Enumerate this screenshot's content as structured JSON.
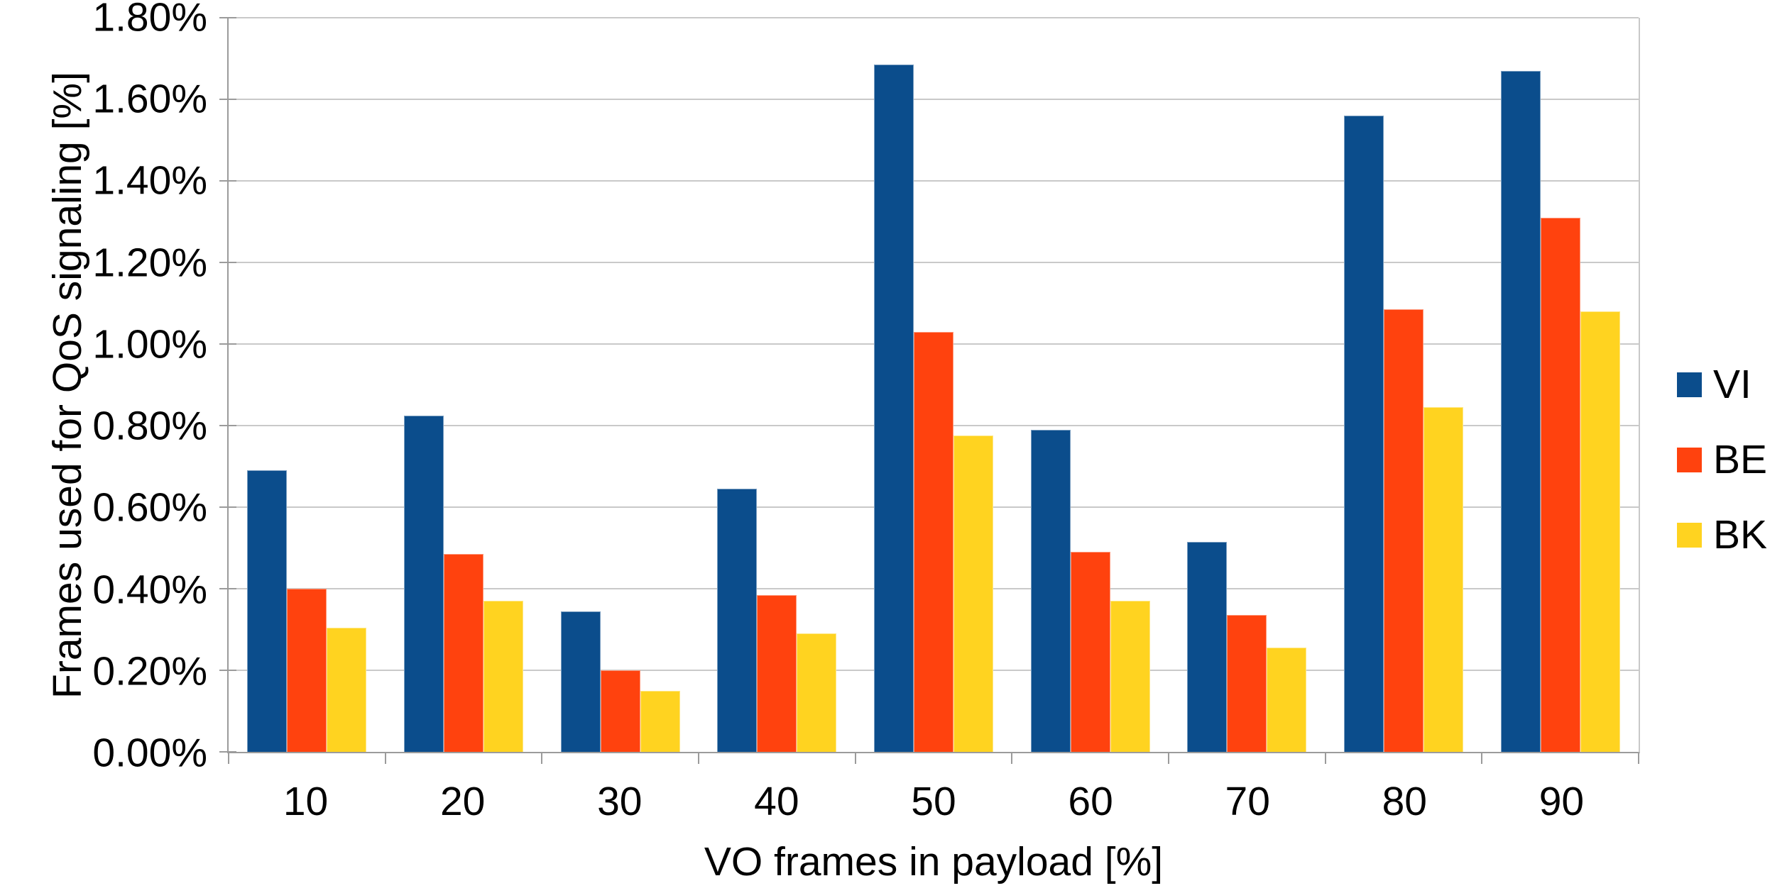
{
  "chart_data": {
    "type": "bar",
    "title": "",
    "xlabel": "VO frames in payload [%]",
    "ylabel": "Frames used for QoS signaling [%]",
    "categories": [
      "10",
      "20",
      "30",
      "40",
      "50",
      "60",
      "70",
      "80",
      "90"
    ],
    "series": [
      {
        "name": "VI",
        "color": "#0b4d8c",
        "values": [
          0.69,
          0.825,
          0.345,
          0.645,
          1.685,
          0.79,
          0.515,
          1.56,
          1.67
        ]
      },
      {
        "name": "BE",
        "color": "#ff420e",
        "values": [
          0.4,
          0.485,
          0.2,
          0.385,
          1.03,
          0.49,
          0.335,
          1.085,
          1.31
        ]
      },
      {
        "name": "BK",
        "color": "#ffd320",
        "values": [
          0.305,
          0.37,
          0.15,
          0.29,
          0.775,
          0.37,
          0.255,
          0.845,
          1.08
        ]
      }
    ],
    "ylim": [
      0,
      1.8
    ],
    "ytick_step": 0.2,
    "y_tick_labels": [
      "0.00%",
      "0.20%",
      "0.40%",
      "0.60%",
      "0.80%",
      "1.00%",
      "1.20%",
      "1.40%",
      "1.60%",
      "1.80%"
    ],
    "grid": true,
    "legend_position": "right",
    "colors": {
      "axis": "#9b9b9b",
      "gridline": "#c9c9c9",
      "background": "#ffffff",
      "text": "#000000"
    }
  }
}
